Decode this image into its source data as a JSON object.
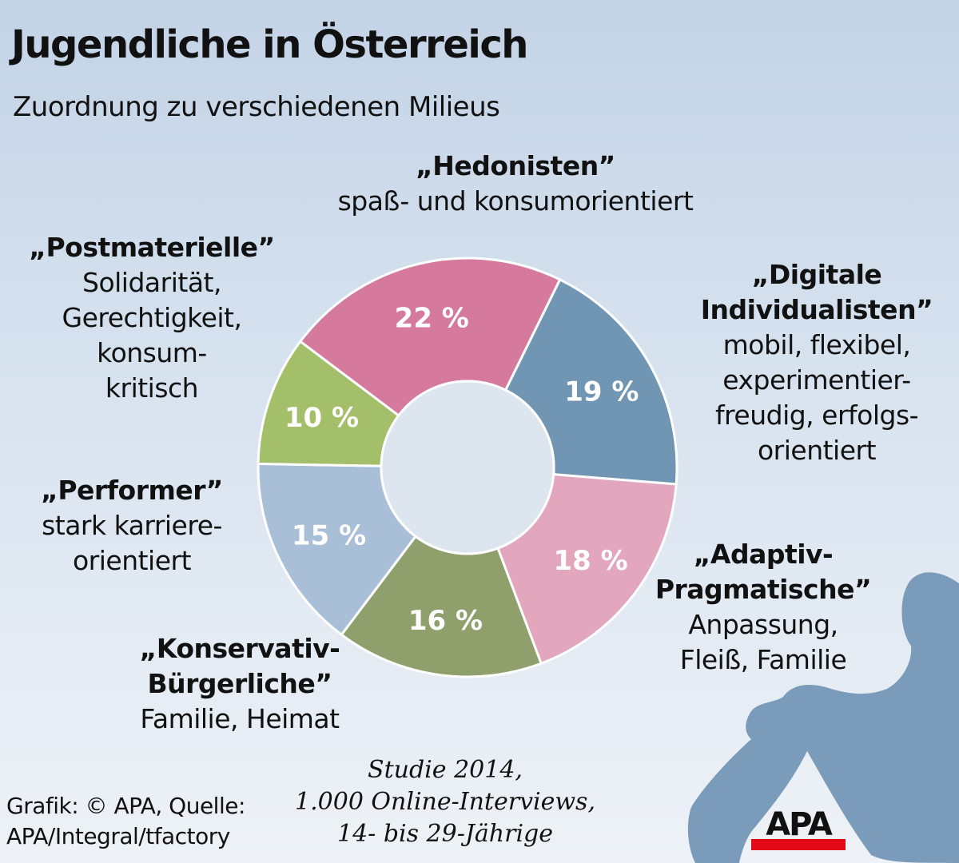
{
  "header": {
    "title": "Jugendliche in Österreich",
    "subtitle": "Zuordnung zu verschiedenen Milieus"
  },
  "chart_data": {
    "type": "pie",
    "variant": "donut",
    "title": "Jugendliche in Österreich",
    "subtitle": "Zuordnung zu verschiedenen Milieus",
    "unit": "%",
    "slices": [
      {
        "name": "„Hedonisten”",
        "description": "spaß- und konsumorientiert",
        "value": 22,
        "label": "22 %",
        "color": "#d57a9c"
      },
      {
        "name": "„Digitale Individualisten”",
        "description": "mobil, flexibel, experimentierfreudig, erfolgsorientiert",
        "value": 19,
        "label": "19 %",
        "color": "#7096b4"
      },
      {
        "name": "„Adaptiv-Pragmatische”",
        "description": "Anpassung, Fleiß, Familie",
        "value": 18,
        "label": "18 %",
        "color": "#e2a6bd"
      },
      {
        "name": "„Konservativ-Bürgerliche”",
        "description": "Familie, Heimat",
        "value": 16,
        "label": "16 %",
        "color": "#8fa06c"
      },
      {
        "name": "„Performer”",
        "description": "stark karriereorientiert",
        "value": 15,
        "label": "15 %",
        "color": "#a9bfd7"
      },
      {
        "name": "„Postmaterielle”",
        "description": "Solidarität, Gerechtigkeit, konsumkritisch",
        "value": 10,
        "label": "10 %",
        "color": "#a4bf6a"
      }
    ]
  },
  "labels": {
    "hedonisten": {
      "name": "„Hedonisten”",
      "lines": [
        "spaß- und konsumorientiert"
      ]
    },
    "digitale": {
      "name1": "„Digitale",
      "name2": "Individualisten”",
      "lines": [
        "mobil, flexibel,",
        "experimentier-",
        "freudig, erfolgs-",
        "orientiert"
      ]
    },
    "adaptiv": {
      "name1": "„Adaptiv-",
      "name2": "Pragmatische”",
      "lines": [
        "Anpassung,",
        "Fleiß, Familie"
      ]
    },
    "konservativ": {
      "name1": "„Konservativ-",
      "name2": "Bürgerliche”",
      "lines": [
        "Familie, Heimat"
      ]
    },
    "performer": {
      "name": "„Performer”",
      "lines": [
        "stark karriere-",
        "orientiert"
      ]
    },
    "postmaterielle": {
      "name": "„Postmaterielle”",
      "lines": [
        "Solidarität,",
        "Gerechtigkeit,",
        "konsum-",
        "kritisch"
      ]
    }
  },
  "footer": {
    "credit_line1": "Grafik: © APA, Quelle:",
    "credit_line2": "APA/Integral/tfactory",
    "study_line1": "Studie 2014,",
    "study_line2": "1.000 Online-Interviews,",
    "study_line3": "14- bis 29-Jährige",
    "logo": "APA",
    "silhouette_color": "#7a9cba",
    "logo_bar_color": "#e20a16"
  }
}
